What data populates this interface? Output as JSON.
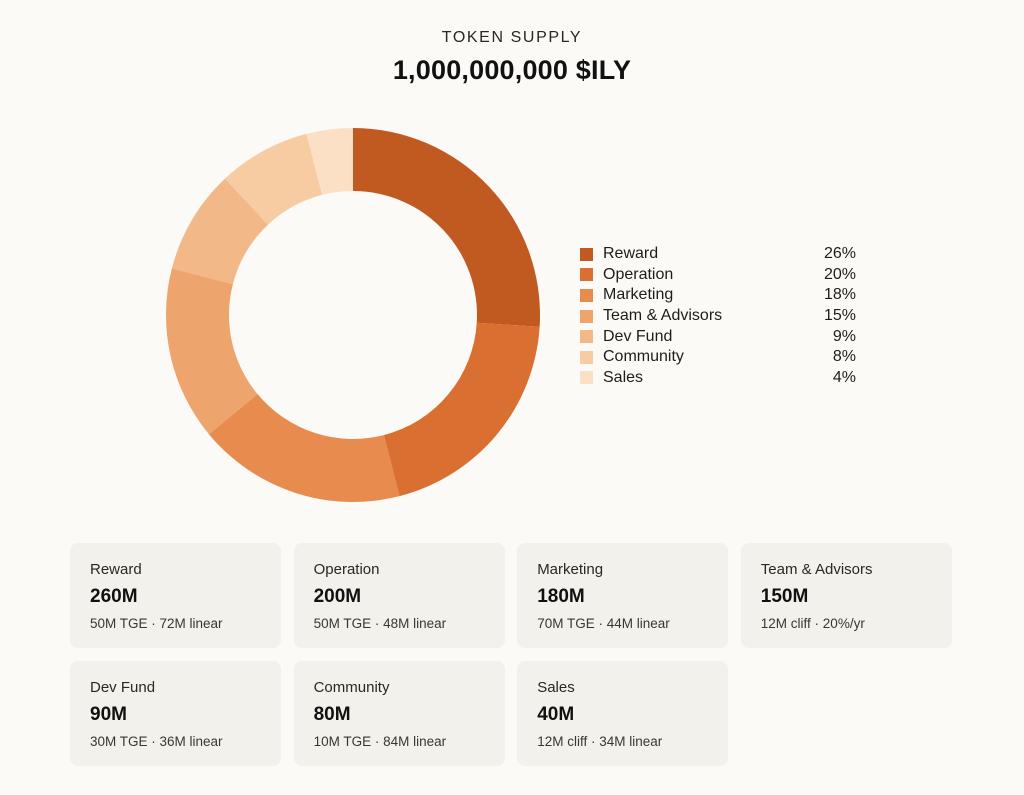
{
  "header": {
    "eyebrow": "TOKEN SUPPLY",
    "title": "1,000,000,000 $ILY"
  },
  "chart_data": {
    "type": "pie",
    "variant": "donut",
    "categories": [
      "Reward",
      "Operation",
      "Marketing",
      "Team & Advisors",
      "Dev Fund",
      "Community",
      "Sales"
    ],
    "values": [
      26,
      20,
      18,
      15,
      9,
      8,
      4
    ],
    "labels": [
      "26%",
      "20%",
      "18%",
      "15%",
      "9%",
      "8%",
      "4%"
    ],
    "colors": [
      "#c05a20",
      "#d96f30",
      "#e88b4e",
      "#eda46d",
      "#f3b888",
      "#f7ccA3",
      "#fbe0c6"
    ],
    "legend_position": "right"
  },
  "cards": [
    {
      "name": "Reward",
      "amount": "260M",
      "detail": "50M TGE · 72M linear"
    },
    {
      "name": "Operation",
      "amount": "200M",
      "detail": "50M TGE · 48M linear"
    },
    {
      "name": "Marketing",
      "amount": "180M",
      "detail": "70M TGE · 44M linear"
    },
    {
      "name": "Team & Advisors",
      "amount": "150M",
      "detail": "12M cliff · 20%/yr"
    },
    {
      "name": "Dev Fund",
      "amount": "90M",
      "detail": "30M TGE · 36M linear"
    },
    {
      "name": "Community",
      "amount": "80M",
      "detail": "10M TGE · 84M linear"
    },
    {
      "name": "Sales",
      "amount": "40M",
      "detail": "12M cliff · 34M linear"
    }
  ]
}
